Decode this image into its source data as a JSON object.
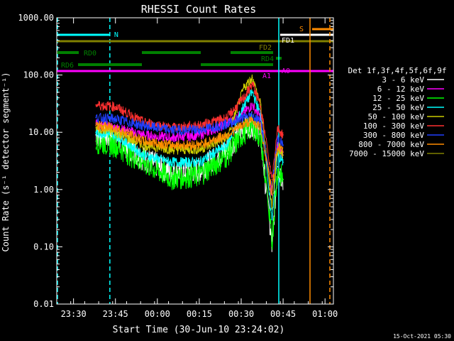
{
  "chart_data": {
    "type": "line",
    "title": "RHESSI Count Rates",
    "xlabel": "Start Time (30-Jun-10 23:24:02)",
    "ylabel": "Count Rate (s⁻¹ detector segment⁻¹)",
    "yscale": "log",
    "ylim": [
      0.01,
      1000
    ],
    "xlim_minutes_after_2324": [
      0,
      99
    ],
    "x_ticks": [
      "23:30",
      "23:45",
      "00:00",
      "00:15",
      "00:30",
      "00:45",
      "01:00"
    ],
    "y_ticks": [
      "0.01",
      "0.10",
      "1.00",
      "10.00",
      "100.00",
      "1000.00"
    ],
    "date_stamp": "15-Oct-2021 05:30",
    "legend": {
      "position": "right",
      "header": "Det 1f,3f,4f,5f,6f,9f"
    },
    "series": [
      {
        "name": "3 - 6 keV",
        "color": "#ffffff",
        "x": [
          "23:38",
          "23:45",
          "23:55",
          "00:05",
          "00:15",
          "00:25",
          "00:31",
          "00:34",
          "00:37",
          "00:41",
          "00:43",
          "00:45"
        ],
        "y": [
          9,
          8,
          3.5,
          2.0,
          2.2,
          5,
          12,
          14,
          8,
          0.1,
          2.5,
          1.5
        ]
      },
      {
        "name": "6 - 12 keV",
        "color": "#ff00ff",
        "x": [
          "23:38",
          "23:45",
          "23:55",
          "00:05",
          "00:15",
          "00:25",
          "00:31",
          "00:34",
          "00:37",
          "00:41",
          "00:43",
          "00:45"
        ],
        "y": [
          14,
          12,
          9,
          8,
          9,
          14,
          22,
          30,
          18,
          0.8,
          6,
          4
        ]
      },
      {
        "name": "12 - 25 keV",
        "color": "#00ff00",
        "x": [
          "23:38",
          "23:45",
          "23:55",
          "00:05",
          "00:15",
          "00:25",
          "00:31",
          "00:34",
          "00:37",
          "00:41",
          "00:43",
          "00:45"
        ],
        "y": [
          7,
          6,
          3,
          1.6,
          1.8,
          4,
          10,
          13,
          8,
          0.12,
          2.2,
          1.5
        ]
      },
      {
        "name": "25 - 50 keV",
        "color": "#00ffff",
        "x": [
          "23:38",
          "23:45",
          "23:55",
          "00:05",
          "00:15",
          "00:25",
          "00:31",
          "00:34",
          "00:37",
          "00:41",
          "00:43",
          "00:45"
        ],
        "y": [
          10,
          9,
          4,
          3,
          3,
          6,
          30,
          50,
          20,
          0.3,
          4,
          3
        ]
      },
      {
        "name": "50 - 100 keV",
        "color": "#cccc00",
        "x": [
          "23:38",
          "23:45",
          "23:55",
          "00:05",
          "00:15",
          "00:25",
          "00:31",
          "00:34",
          "00:37",
          "00:41",
          "00:43",
          "00:45"
        ],
        "y": [
          12,
          10,
          6,
          5,
          5,
          8,
          60,
          90,
          30,
          0.5,
          5,
          4
        ]
      },
      {
        "name": "100 - 300 keV",
        "color": "#ff3030",
        "x": [
          "23:38",
          "23:45",
          "23:55",
          "00:05",
          "00:15",
          "00:25",
          "00:31",
          "00:34",
          "00:37",
          "00:41",
          "00:43",
          "00:45"
        ],
        "y": [
          30,
          28,
          15,
          12,
          13,
          18,
          40,
          70,
          28,
          1.5,
          12,
          9
        ]
      },
      {
        "name": "300 - 800 keV",
        "color": "#2040ff",
        "x": [
          "23:38",
          "23:45",
          "23:55",
          "00:05",
          "00:15",
          "00:25",
          "00:31",
          "00:34",
          "00:37",
          "00:41",
          "00:43",
          "00:45"
        ],
        "y": [
          18,
          17,
          13,
          11,
          11,
          14,
          18,
          20,
          15,
          1.0,
          8,
          6
        ]
      },
      {
        "name": "800 - 7000 keV",
        "color": "#ff8c00",
        "x": [
          "23:38",
          "23:45",
          "23:55",
          "00:05",
          "00:15",
          "00:25",
          "00:31",
          "00:34",
          "00:37",
          "00:41",
          "00:43",
          "00:45"
        ],
        "y": [
          13,
          12,
          7,
          6,
          6,
          9,
          14,
          16,
          12,
          0.9,
          6,
          4.5
        ]
      },
      {
        "name": "7000 - 15000 keV",
        "color": "#808000",
        "x": [],
        "y": []
      }
    ],
    "flag_bars": [
      {
        "label": "N",
        "color": "#00ffff"
      },
      {
        "label": "S",
        "color": "#ff8c00"
      },
      {
        "label": "FD1",
        "color": "#ffffff"
      },
      {
        "label": "FD2",
        "color": "#808000"
      },
      {
        "label": "RD0",
        "color": "#008000"
      },
      {
        "label": "RD4",
        "color": "#008000"
      },
      {
        "label": "RD6",
        "color": "#008000"
      },
      {
        "label": "A1",
        "color": "#ff00ff"
      },
      {
        "label": "A0",
        "color": "#ff00ff"
      }
    ]
  }
}
